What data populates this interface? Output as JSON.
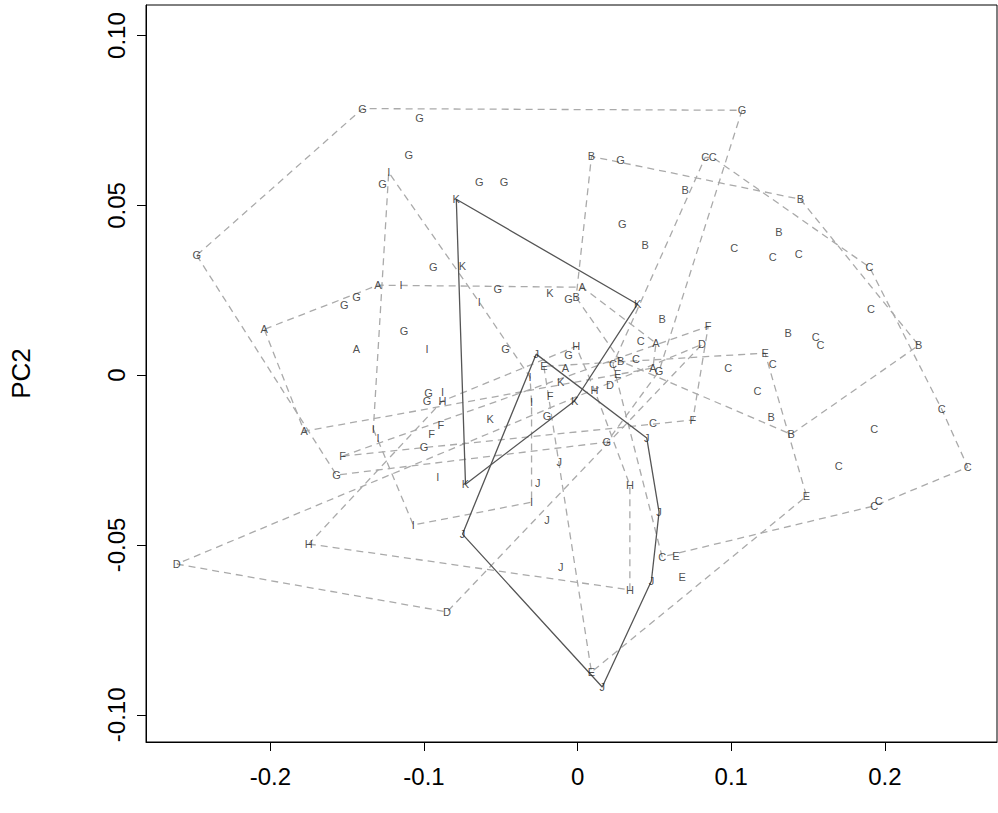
{
  "chart_data": {
    "type": "scatter",
    "y_label": "PC2",
    "xlim": [
      -0.281,
      0.273
    ],
    "ylim": [
      -0.108,
      0.109
    ],
    "xticks": [
      -0.2,
      -0.1,
      0,
      0.1,
      0.2
    ],
    "yticks": [
      {
        "value": -0.1,
        "label": "-0.10"
      },
      {
        "value": -0.05,
        "label": "-0.05"
      },
      0,
      {
        "value": 0.05,
        "label": "0.05"
      },
      {
        "value": 0.1,
        "label": "0.10"
      }
    ],
    "grid": false,
    "marker": "letter",
    "series": [
      {
        "name": "A",
        "color": "#aaaaaa",
        "line_style": "dashed",
        "values": [
          [
            -0.204,
            0.0135
          ],
          [
            -0.13,
            0.0265
          ],
          [
            -0.144,
            0.0076
          ],
          [
            0.003,
            0.0259
          ],
          [
            -0.008,
            0.0021
          ],
          [
            0.051,
            0.0094
          ],
          [
            0.049,
            0.0021
          ],
          [
            -0.178,
            -0.0165
          ]
        ]
      },
      {
        "name": "B",
        "color": "#aaaaaa",
        "line_style": "dashed",
        "values": [
          [
            0.009,
            0.0644
          ],
          [
            0.07,
            0.0544
          ],
          [
            0.145,
            0.0518
          ],
          [
            0.044,
            0.0382
          ],
          [
            0.131,
            0.0421
          ],
          [
            -0.001,
            0.0229
          ],
          [
            0.055,
            0.0165
          ],
          [
            0.137,
            0.0124
          ],
          [
            0.028,
            0.0041
          ],
          [
            0.222,
            0.0088
          ],
          [
            0.126,
            -0.0124
          ],
          [
            0.139,
            -0.0174
          ]
        ]
      },
      {
        "name": "C",
        "color": "#aaaaaa",
        "line_style": "dashed",
        "values": [
          [
            0.083,
            0.0641
          ],
          [
            0.088,
            0.0641
          ],
          [
            0.102,
            0.0374
          ],
          [
            0.127,
            0.0347
          ],
          [
            0.144,
            0.0356
          ],
          [
            0.19,
            0.0318
          ],
          [
            0.191,
            0.0194
          ],
          [
            0.041,
            0.01
          ],
          [
            0.038,
            0.0047
          ],
          [
            0.023,
            0.0032
          ],
          [
            0.155,
            0.0112
          ],
          [
            0.158,
            0.0088
          ],
          [
            0.127,
            0.0032
          ],
          [
            0.098,
            0.0021
          ],
          [
            0.117,
            -0.0047
          ],
          [
            0.237,
            -0.01
          ],
          [
            0.049,
            -0.0141
          ],
          [
            0.193,
            -0.0159
          ],
          [
            0.17,
            -0.0268
          ],
          [
            0.254,
            -0.0271
          ],
          [
            0.196,
            -0.0371
          ],
          [
            0.193,
            -0.0385
          ],
          [
            0.055,
            -0.0535
          ]
        ]
      },
      {
        "name": "D",
        "color": "#aaaaaa",
        "line_style": "dashed",
        "values": [
          [
            0.081,
            0.0091
          ],
          [
            0.021,
            -0.0029
          ],
          [
            -0.261,
            -0.0556
          ],
          [
            -0.085,
            -0.0697
          ]
        ]
      },
      {
        "name": "E",
        "color": "#aaaaaa",
        "line_style": "dashed",
        "values": [
          [
            -0.022,
            0.0026
          ],
          [
            0.026,
            0.0003
          ],
          [
            0.122,
            0.0065
          ],
          [
            0.149,
            -0.0356
          ],
          [
            0.064,
            -0.0532
          ],
          [
            0.068,
            -0.0594
          ],
          [
            0.009,
            -0.0874
          ]
        ]
      },
      {
        "name": "F",
        "color": "#aaaaaa",
        "line_style": "dashed",
        "values": [
          [
            0.085,
            0.0144
          ],
          [
            -0.018,
            -0.0062
          ],
          [
            -0.089,
            -0.0147
          ],
          [
            -0.095,
            -0.0174
          ],
          [
            -0.153,
            -0.0238
          ],
          [
            0.075,
            -0.0132
          ]
        ]
      },
      {
        "name": "G",
        "color": "#aaaaaa",
        "line_style": "dashed",
        "values": [
          [
            -0.14,
            0.0785
          ],
          [
            -0.103,
            0.0756
          ],
          [
            0.107,
            0.078
          ],
          [
            -0.11,
            0.0647
          ],
          [
            -0.127,
            0.0562
          ],
          [
            -0.064,
            0.0568
          ],
          [
            -0.048,
            0.0568
          ],
          [
            0.028,
            0.0635
          ],
          [
            -0.248,
            0.0353
          ],
          [
            0.029,
            0.0444
          ],
          [
            -0.094,
            0.0318
          ],
          [
            -0.052,
            0.0253
          ],
          [
            -0.144,
            0.0229
          ],
          [
            -0.152,
            0.0206
          ],
          [
            -0.113,
            0.0129
          ],
          [
            -0.006,
            0.0224
          ],
          [
            -0.047,
            0.0076
          ],
          [
            -0.006,
            0.0059
          ],
          [
            0.053,
            0.0012
          ],
          [
            -0.097,
            -0.0053
          ],
          [
            -0.098,
            -0.0076
          ],
          [
            -0.02,
            -0.0121
          ],
          [
            -0.1,
            -0.0212
          ],
          [
            -0.157,
            -0.0294
          ],
          [
            0.019,
            -0.0197
          ]
        ]
      },
      {
        "name": "H",
        "color": "#aaaaaa",
        "line_style": "dashed",
        "values": [
          [
            -0.001,
            0.0085
          ],
          [
            -0.088,
            -0.0076
          ],
          [
            0.011,
            -0.0044
          ],
          [
            0.034,
            -0.0324
          ],
          [
            -0.175,
            -0.0497
          ],
          [
            0.034,
            -0.0632
          ]
        ]
      },
      {
        "name": "I",
        "color": "#aaaaaa",
        "line_style": "dashed",
        "values": [
          [
            -0.123,
            0.0597
          ],
          [
            -0.115,
            0.0265
          ],
          [
            -0.064,
            0.0215
          ],
          [
            -0.098,
            0.0076
          ],
          [
            -0.088,
            -0.005
          ],
          [
            -0.031,
            -0.0006
          ],
          [
            -0.03,
            -0.0079
          ],
          [
            -0.133,
            -0.0159
          ],
          [
            -0.13,
            -0.0185
          ],
          [
            -0.091,
            -0.03
          ],
          [
            -0.03,
            -0.0374
          ],
          [
            -0.107,
            -0.0441
          ]
        ]
      },
      {
        "name": "J",
        "color": "#555555",
        "line_style": "solid",
        "values": [
          [
            -0.027,
            0.0062
          ],
          [
            0.045,
            -0.0185
          ],
          [
            -0.012,
            -0.0256
          ],
          [
            -0.026,
            -0.0318
          ],
          [
            -0.02,
            -0.0426
          ],
          [
            0.053,
            -0.0403
          ],
          [
            -0.075,
            -0.0468
          ],
          [
            -0.011,
            -0.0565
          ],
          [
            0.048,
            -0.0606
          ],
          [
            0.016,
            -0.0918
          ]
        ]
      },
      {
        "name": "K",
        "color": "#555555",
        "line_style": "solid",
        "values": [
          [
            -0.079,
            0.0518
          ],
          [
            -0.075,
            0.0321
          ],
          [
            -0.018,
            0.0241
          ],
          [
            0.039,
            0.0209
          ],
          [
            -0.011,
            -0.0021
          ],
          [
            -0.002,
            -0.0076
          ],
          [
            -0.057,
            -0.0129
          ],
          [
            -0.073,
            -0.0321
          ]
        ]
      }
    ]
  }
}
